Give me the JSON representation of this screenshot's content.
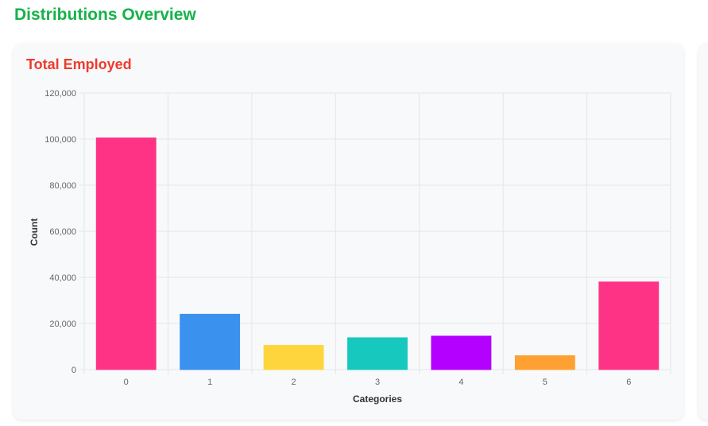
{
  "page": {
    "title": "Distributions Overview"
  },
  "card": {
    "title": "Total Employed"
  },
  "colors": {
    "page_title": "#16b24a",
    "card_title": "#ee3b2b",
    "grid": "#e6e6e6"
  },
  "chart_data": {
    "type": "bar",
    "title": "Total Employed",
    "xlabel": "Categories",
    "ylabel": "Count",
    "categories": [
      "0",
      "1",
      "2",
      "3",
      "4",
      "5",
      "6"
    ],
    "values": [
      100500,
      24000,
      10500,
      13800,
      14500,
      6000,
      38000
    ],
    "colors": [
      "#ff3385",
      "#3b91ee",
      "#ffd53d",
      "#16c8be",
      "#b300ff",
      "#ffa032",
      "#ff3385"
    ],
    "ylim": [
      0,
      120000
    ],
    "yticks": [
      0,
      20000,
      40000,
      60000,
      80000,
      100000,
      120000
    ],
    "ytick_labels": [
      "0",
      "20,000",
      "40,000",
      "60,000",
      "80,000",
      "100,000",
      "120,000"
    ],
    "grid": true,
    "legend": "none"
  }
}
